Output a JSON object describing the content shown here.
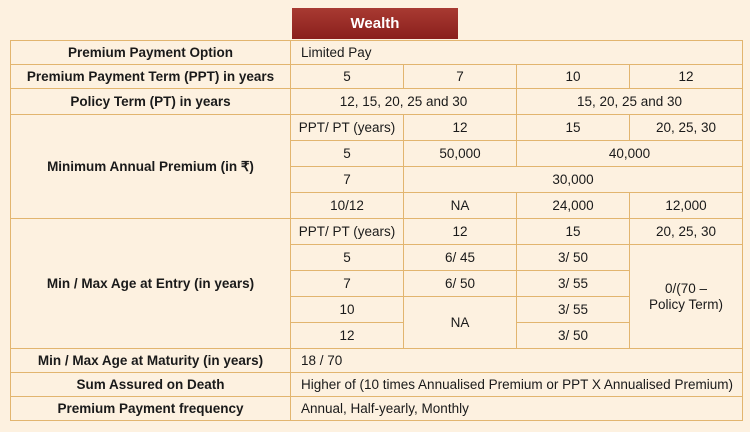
{
  "header": {
    "title": "Wealth"
  },
  "rows": {
    "payment_option": {
      "label": "Premium Payment Option",
      "value": "Limited Pay"
    },
    "ppt": {
      "label": "Premium Payment Term (PPT) in years",
      "values": [
        "5",
        "7",
        "10",
        "12"
      ]
    },
    "policy_term": {
      "label": "Policy Term (PT) in years",
      "values": [
        "12, 15, 20, 25 and 30",
        "15, 20, 25 and 30"
      ]
    },
    "min_premium": {
      "label": "Minimum Annual Premium (in ₹)",
      "header": [
        "PPT/ PT (years)",
        "12",
        "15",
        "20, 25, 30"
      ],
      "r5": [
        "5",
        "50,000",
        "40,000"
      ],
      "r7": [
        "7",
        "30,000"
      ],
      "r1012": [
        "10/12",
        "NA",
        "24,000",
        "12,000"
      ]
    },
    "age_entry": {
      "label": "Min / Max Age at Entry (in years)",
      "header": [
        "PPT/ PT (years)",
        "12",
        "15",
        "20, 25, 30"
      ],
      "r5": [
        "5",
        "6/ 45",
        "3/ 50"
      ],
      "r7": [
        "7",
        "6/ 50",
        "3/ 55"
      ],
      "r10": [
        "10",
        "3/ 55"
      ],
      "r12": [
        "12",
        "3/ 50"
      ],
      "na": "NA",
      "merged_line1": "0/(70 –",
      "merged_line2": "Policy Term)"
    },
    "age_maturity": {
      "label": "Min / Max Age at Maturity (in years)",
      "value": "18 / 70"
    },
    "sum_assured": {
      "label": "Sum Assured on Death",
      "value": "Higher of (10 times Annualised Premium or PPT X Annualised Premium)"
    },
    "frequency": {
      "label": "Premium Payment frequency",
      "value": "Annual, Half-yearly, Monthly"
    }
  }
}
